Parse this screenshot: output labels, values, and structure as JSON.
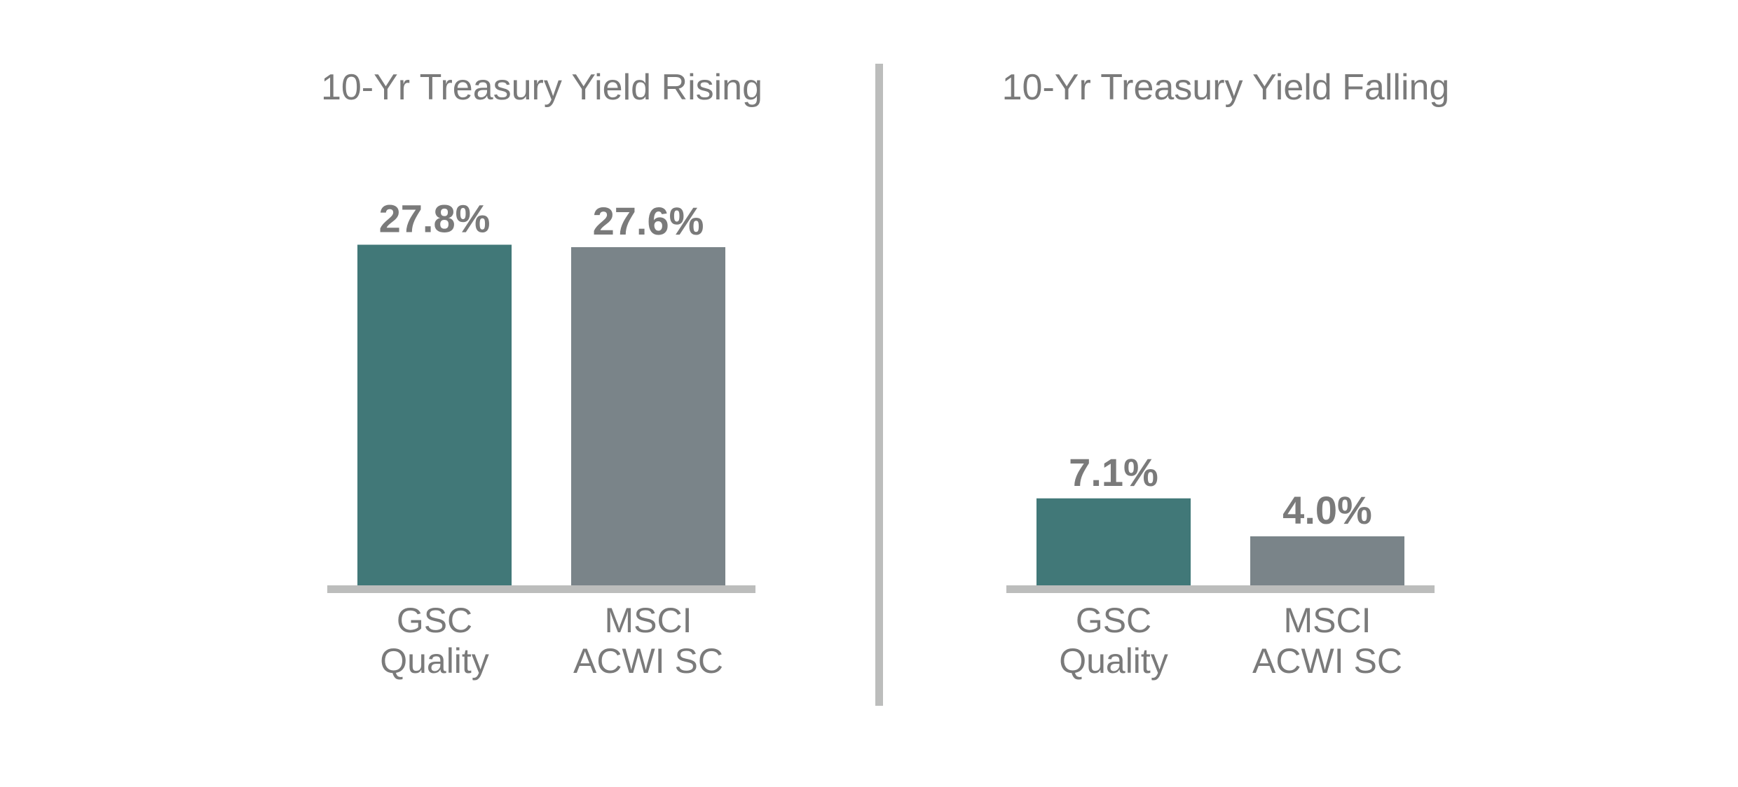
{
  "chart_data": [
    {
      "type": "bar",
      "title": "10-Yr Treasury Yield Rising",
      "categories": [
        [
          "GSC",
          "Quality"
        ],
        [
          "MSCI",
          "ACWI SC"
        ]
      ],
      "values": [
        27.8,
        27.6
      ],
      "value_labels": [
        "27.8%",
        "27.6%"
      ],
      "colors": [
        "#417878",
        "#7a8489"
      ],
      "ylim": [
        0,
        30
      ],
      "grid": false,
      "legend": "none"
    },
    {
      "type": "bar",
      "title": "10-Yr Treasury Yield Falling",
      "categories": [
        [
          "GSC",
          "Quality"
        ],
        [
          "MSCI",
          "ACWI SC"
        ]
      ],
      "values": [
        7.1,
        4.0
      ],
      "value_labels": [
        "7.1%",
        "4.0%"
      ],
      "colors": [
        "#417878",
        "#7a8489"
      ],
      "ylim": [
        0,
        30
      ],
      "grid": false,
      "legend": "none"
    }
  ],
  "style": {
    "text_color": "#7a7a7a",
    "baseline_color": "#bcbdbc",
    "divider_color": "#bcbdbc"
  }
}
